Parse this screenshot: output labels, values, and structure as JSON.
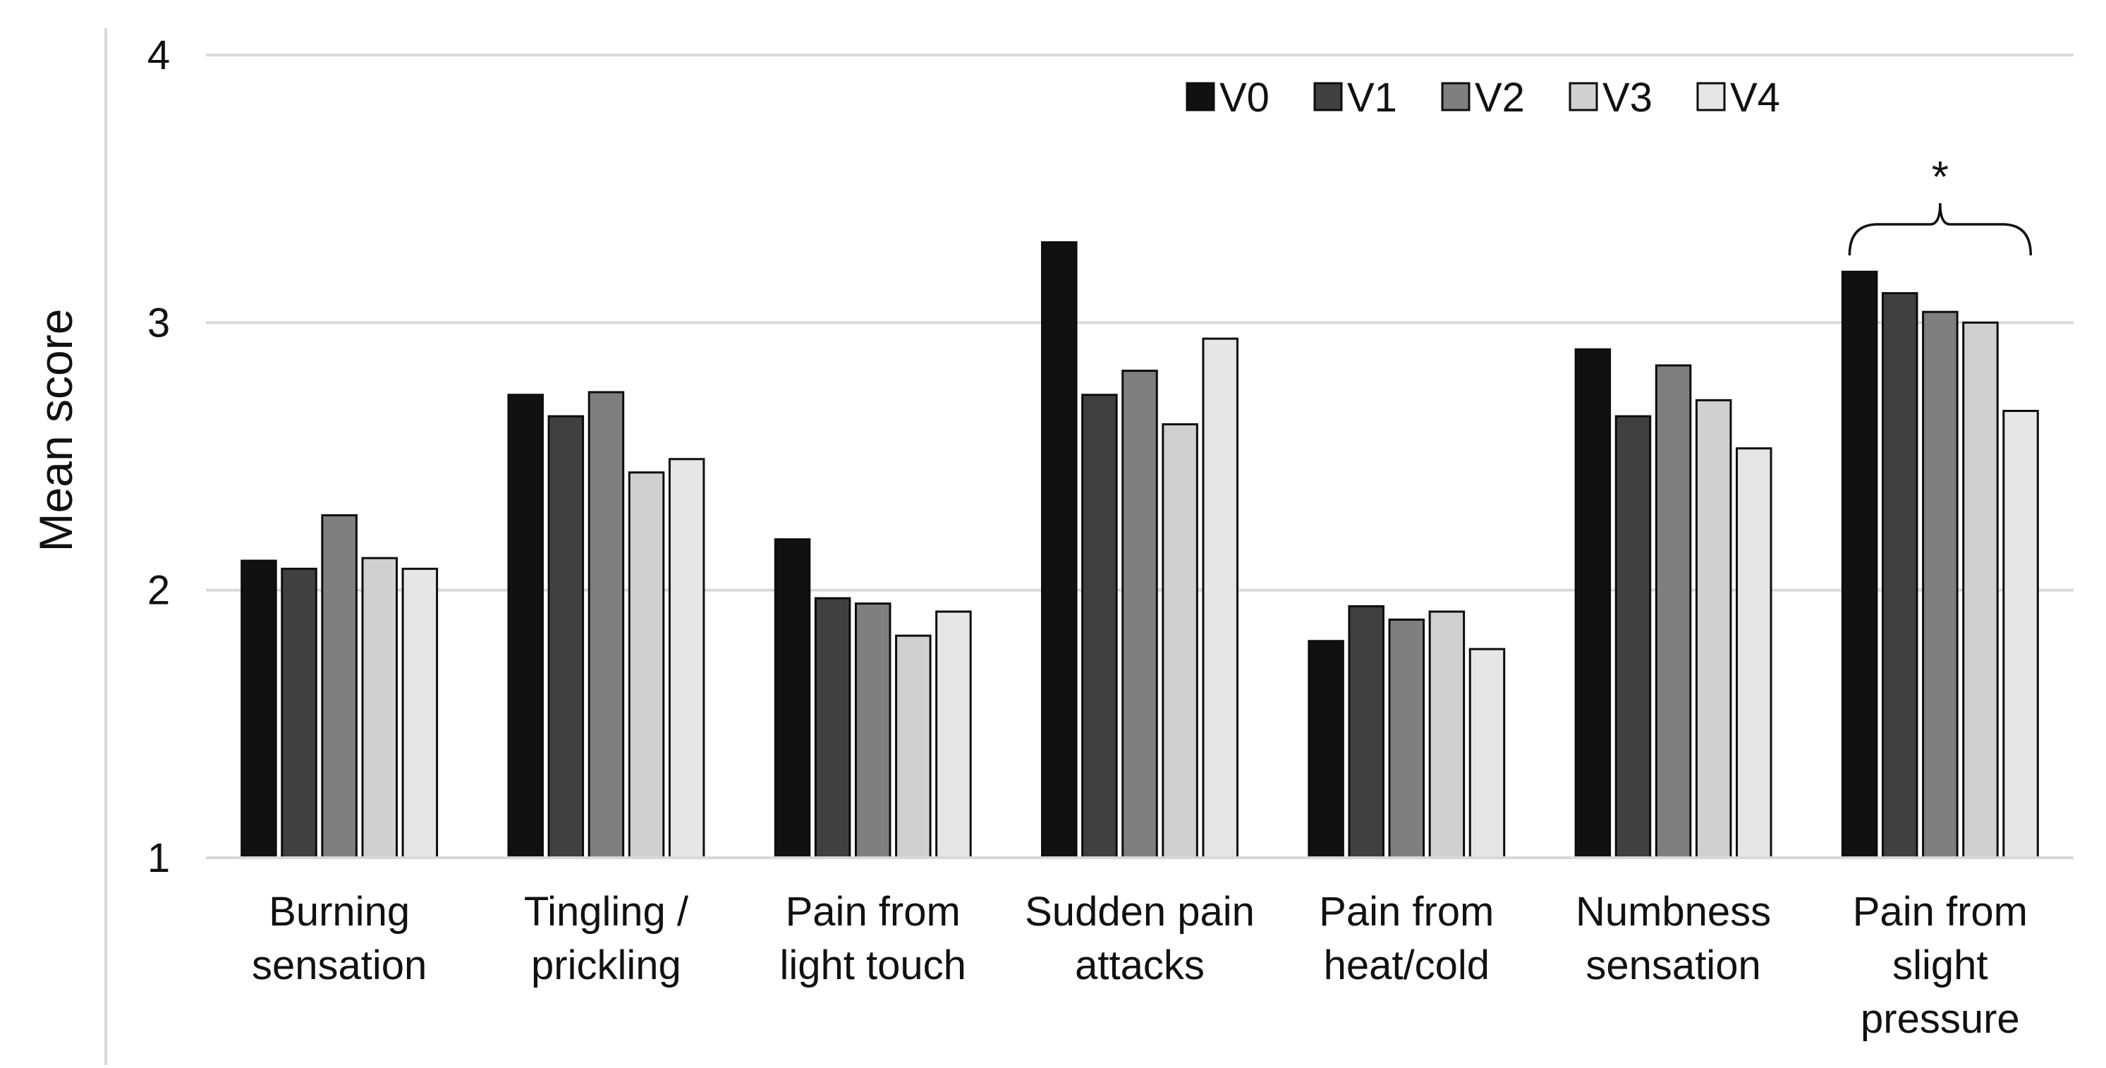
{
  "chart_data": {
    "type": "bar",
    "title": "",
    "xlabel": "",
    "ylabel": "Mean score",
    "ylim": [
      1,
      4
    ],
    "yticks": [
      1,
      2,
      3,
      4
    ],
    "grid": true,
    "legend_position": "top-right",
    "categories": [
      [
        "Burning",
        "sensation"
      ],
      [
        "Tingling /",
        "prickling"
      ],
      [
        "Pain from",
        "light touch"
      ],
      [
        "Sudden pain",
        "attacks"
      ],
      [
        "Pain from",
        "heat/cold"
      ],
      [
        "Numbness",
        "sensation"
      ],
      [
        "Pain from",
        "slight",
        "pressure"
      ]
    ],
    "series": [
      {
        "name": "V0",
        "color": "#111111",
        "values": [
          2.11,
          2.73,
          2.19,
          3.3,
          1.81,
          2.9,
          3.19
        ]
      },
      {
        "name": "V1",
        "color": "#404040",
        "values": [
          2.08,
          2.65,
          1.97,
          2.73,
          1.94,
          2.65,
          3.11
        ]
      },
      {
        "name": "V2",
        "color": "#7f7f7f",
        "values": [
          2.28,
          2.74,
          1.95,
          2.82,
          1.89,
          2.84,
          3.04
        ]
      },
      {
        "name": "V3",
        "color": "#d0d0d0",
        "values": [
          2.12,
          2.44,
          1.83,
          2.62,
          1.92,
          2.71,
          3.0
        ]
      },
      {
        "name": "V4",
        "color": "#e6e6e6",
        "values": [
          2.08,
          2.49,
          1.92,
          2.94,
          1.78,
          2.53,
          2.67
        ]
      }
    ],
    "annotations": [
      {
        "category_index": 6,
        "text": "*",
        "type": "bracket"
      }
    ]
  }
}
